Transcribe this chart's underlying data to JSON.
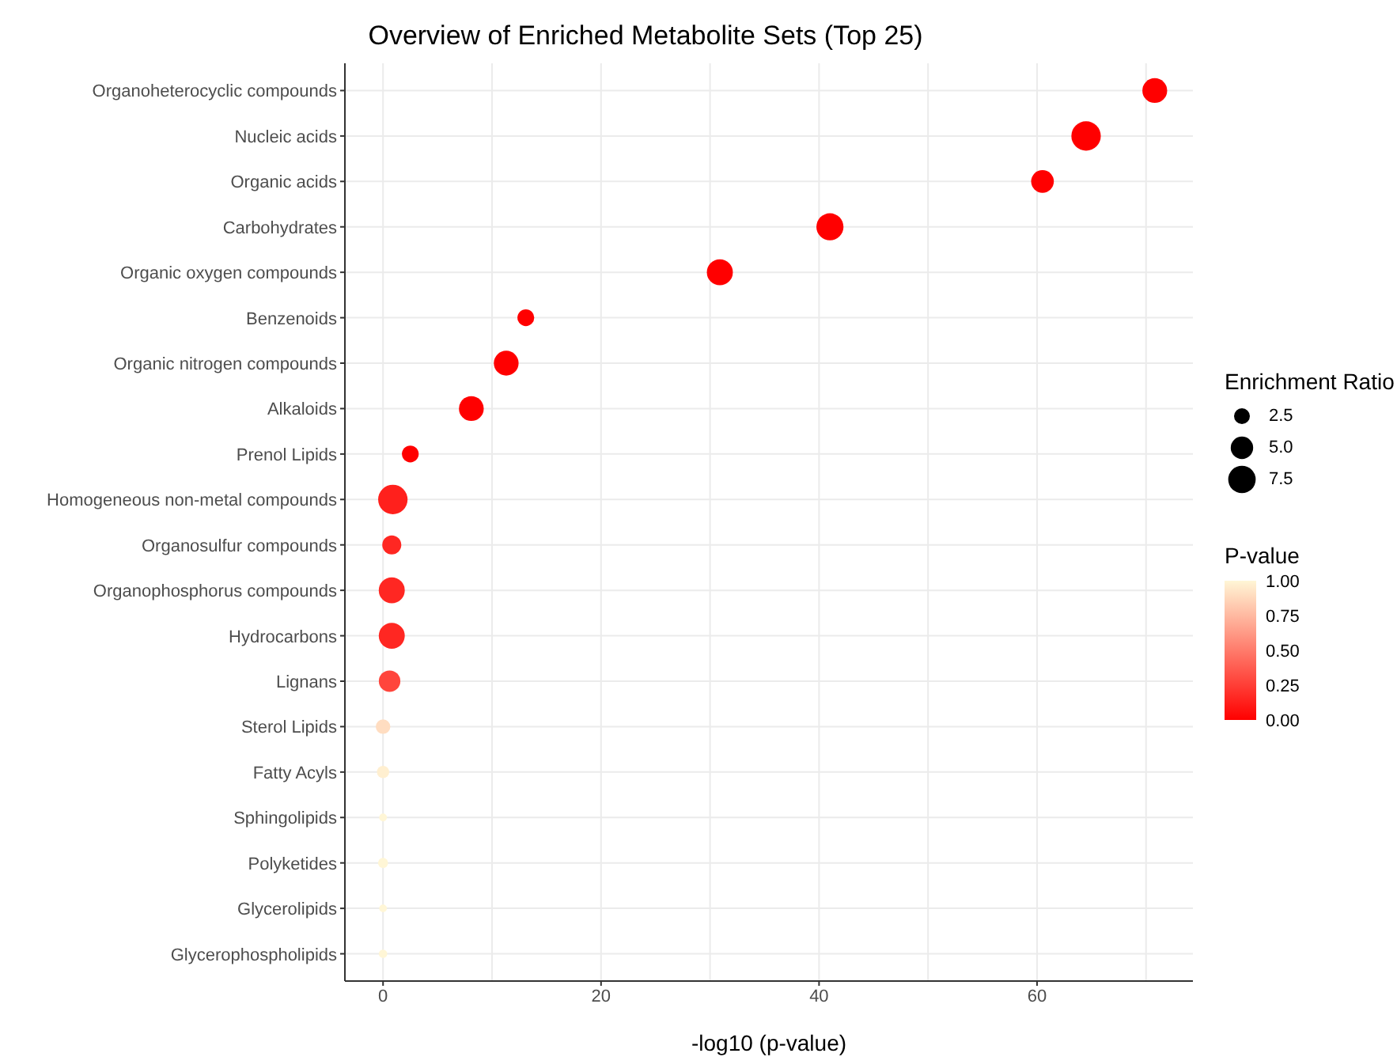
{
  "chart_data": {
    "type": "bubble",
    "title": "Overview of Enriched Metabolite Sets (Top 25)",
    "xlabel": "-log10 (p-value)",
    "orientation": "horizontal",
    "categories": [
      "Organoheterocyclic compounds",
      "Nucleic acids",
      "Organic acids",
      "Carbohydrates",
      "Organic oxygen compounds",
      "Benzenoids",
      "Organic nitrogen compounds",
      "Alkaloids",
      "Prenol Lipids",
      "Homogeneous non-metal compounds",
      "Organosulfur compounds",
      "Organophosphorus compounds",
      "Hydrocarbons",
      "Lignans",
      "Sterol Lipids",
      "Fatty Acyls",
      "Sphingolipids",
      "Polyketides",
      "Glycerolipids",
      "Glycerophospholipids"
    ],
    "values": [
      70.8,
      64.5,
      60.5,
      41.0,
      30.9,
      13.1,
      11.3,
      8.1,
      2.5,
      0.9,
      0.8,
      0.8,
      0.8,
      0.6,
      0,
      0,
      0,
      0,
      0,
      0
    ],
    "sizes": [
      6.1,
      8.6,
      5.1,
      7.3,
      6.7,
      2.8,
      6.1,
      6.1,
      2.8,
      8.6,
      3.6,
      6.7,
      6.7,
      4.6,
      2.1,
      1.5,
      0.6,
      1,
      0.6,
      0.7
    ],
    "cvalues": [
      0,
      0,
      0,
      0,
      0,
      0,
      0,
      0,
      0,
      0.13,
      0.16,
      0.16,
      0.16,
      0.28,
      0.9,
      0.97,
      1,
      1,
      1,
      1
    ],
    "size_legend": [
      {
        "value": 2.5,
        "label": "2.5"
      },
      {
        "value": 5,
        "label": "5.0"
      },
      {
        "value": 7.5,
        "label": "7.5"
      }
    ],
    "legend_title": "Enrichment Ratio",
    "clabel": "P-value",
    "clim": [
      0,
      1
    ],
    "cticks": [
      {
        "value": 0,
        "label": "0.00"
      },
      {
        "value": 0.25,
        "label": "0.25"
      },
      {
        "value": 0.5,
        "label": "0.50"
      },
      {
        "value": 0.75,
        "label": "0.75"
      },
      {
        "value": 1,
        "label": "1.00"
      }
    ],
    "xlim": [
      -3.5,
      74.3
    ],
    "xticks": [
      0,
      {
        "value": 10,
        "label": null
      },
      20,
      {
        "value": 30,
        "label": null
      },
      40,
      {
        "value": 50,
        "label": null
      },
      60,
      {
        "value": 70,
        "label": null
      }
    ],
    "grid": true
  }
}
